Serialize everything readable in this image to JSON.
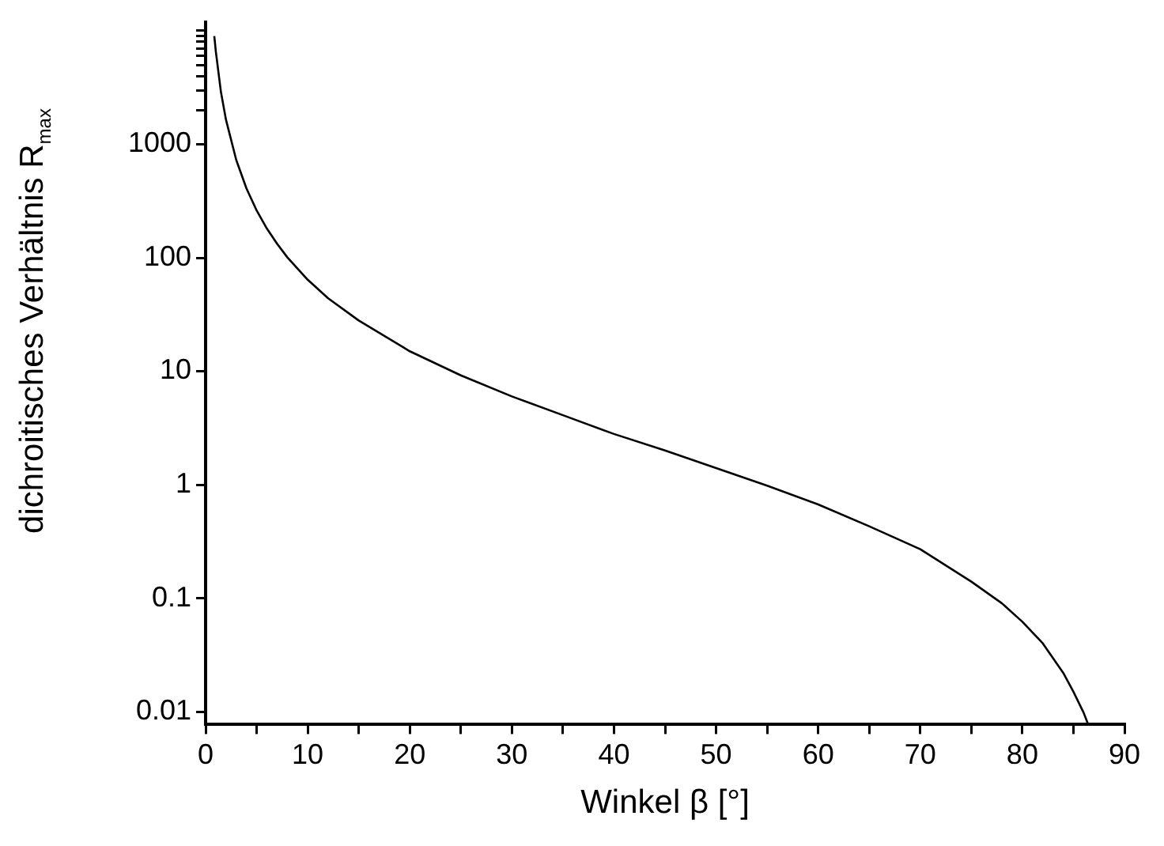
{
  "chart_data": {
    "type": "line",
    "xlabel": "Winkel β [°]",
    "ylabel": "dichroitisches Verhältnis R$_{max}$",
    "log": "y",
    "grid": false,
    "legend": false,
    "marker": "none",
    "line_style": "solid",
    "x": [
      0.85,
      1,
      1.5,
      2,
      3,
      4,
      5,
      6,
      7,
      8,
      10,
      12,
      15,
      20,
      25,
      30,
      35,
      40,
      45,
      50,
      55,
      60,
      65,
      70,
      75,
      78,
      80,
      82,
      84,
      85,
      86,
      86.4
    ],
    "series": [
      {
        "color": "#000000",
        "values": [
          9000,
          6600,
          2900,
          1640,
          728,
          409,
          261,
          181,
          133,
          101,
          64,
          44,
          28,
          15,
          9.2,
          6,
          4.1,
          2.8,
          2,
          1.4,
          0.98,
          0.67,
          0.43,
          0.27,
          0.14,
          0.09,
          0.062,
          0.04,
          0.022,
          0.015,
          0.0098,
          0.0079
        ]
      }
    ],
    "xlim": [
      0,
      90
    ],
    "xticks": [
      0,
      {
        "value": 5,
        "label": null
      },
      10,
      {
        "value": 15,
        "label": null
      },
      20,
      {
        "value": 25,
        "label": null
      },
      30,
      {
        "value": 35,
        "label": null
      },
      40,
      {
        "value": 45,
        "label": null
      },
      50,
      {
        "value": 55,
        "label": null
      },
      60,
      {
        "value": 65,
        "label": null
      },
      70,
      {
        "value": 75,
        "label": null
      },
      80,
      {
        "value": 85,
        "label": null
      },
      90
    ],
    "ylim": [
      0.0077,
      12000
    ],
    "yticks": [
      0.01,
      {
        "value": 0.1,
        "label": "0.1"
      },
      {
        "value": 1,
        "label": "1"
      },
      {
        "value": 10,
        "label": "10"
      },
      {
        "value": 100,
        "label": "100"
      },
      {
        "value": 1000,
        "label": "1000"
      },
      {
        "value": 2000,
        "label": null
      },
      {
        "value": 3000,
        "label": null
      },
      {
        "value": 4000,
        "label": null
      },
      {
        "value": 5000,
        "label": null
      },
      {
        "value": 6000,
        "label": null
      },
      {
        "value": 7000,
        "label": null
      },
      {
        "value": 8000,
        "label": null
      },
      {
        "value": 9000,
        "label": null
      },
      {
        "value": 10000,
        "label": null
      }
    ]
  }
}
